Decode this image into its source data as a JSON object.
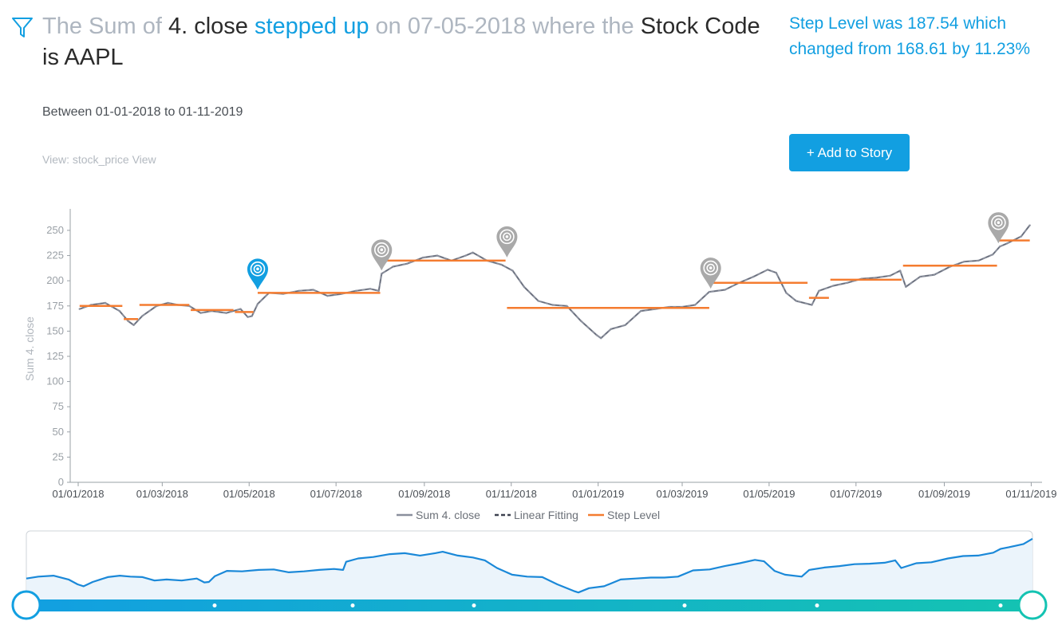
{
  "headline": {
    "p1": "The Sum of ",
    "measure": "4. close",
    "p2": " ",
    "trend": "stepped up",
    "p3": " on 07-05-2018 where the ",
    "dim": "Stock Code is AAPL"
  },
  "side_text": "Step Level was 187.54 which changed from 168.61 by 11.23%",
  "range_text": "Between 01-01-2018 to 01-11-2019",
  "view_text": "View: stock_price View",
  "add_button": "+ Add to Story",
  "icons": {
    "filter": "filter-icon",
    "marker": "map-pin-icon"
  },
  "colors": {
    "accent": "#129fe1",
    "series": "#8a8f9c",
    "step": "#f47c30",
    "marker_active": "#129fe1",
    "marker_inactive": "#a9a9a9"
  },
  "chart_data": {
    "type": "line",
    "xlabel": "",
    "ylabel": "Sum 4. close",
    "ylim": [
      0,
      265
    ],
    "yticks": [
      0,
      25,
      50,
      75,
      100,
      125,
      150,
      175,
      200,
      225,
      250
    ],
    "xrange": [
      "2018-01-01",
      "2019-11-03"
    ],
    "xticks": [
      {
        "date": "2018-01-01",
        "label": "01/01/2018"
      },
      {
        "date": "2018-03-01",
        "label": "01/03/2018"
      },
      {
        "date": "2018-05-01",
        "label": "01/05/2018"
      },
      {
        "date": "2018-07-01",
        "label": "01/07/2018"
      },
      {
        "date": "2018-09-01",
        "label": "01/09/2018"
      },
      {
        "date": "2018-11-01",
        "label": "01/11/2018"
      },
      {
        "date": "2019-01-01",
        "label": "01/01/2019"
      },
      {
        "date": "2019-03-01",
        "label": "01/03/2019"
      },
      {
        "date": "2019-05-01",
        "label": "01/05/2019"
      },
      {
        "date": "2019-07-01",
        "label": "01/07/2019"
      },
      {
        "date": "2019-09-01",
        "label": "01/09/2019"
      },
      {
        "date": "2019-11-01",
        "label": "01/11/2019"
      }
    ],
    "legend": [
      "Sum 4. close",
      "Linear Fitting",
      "Step Level"
    ],
    "legend_position": "bottom",
    "series": [
      {
        "name": "Sum 4. close",
        "x": [
          "2018-01-02",
          "2018-01-10",
          "2018-01-20",
          "2018-01-30",
          "2018-02-05",
          "2018-02-09",
          "2018-02-15",
          "2018-02-25",
          "2018-03-05",
          "2018-03-12",
          "2018-03-20",
          "2018-03-28",
          "2018-04-05",
          "2018-04-15",
          "2018-04-25",
          "2018-04-30",
          "2018-05-03",
          "2018-05-07",
          "2018-05-15",
          "2018-05-25",
          "2018-06-05",
          "2018-06-15",
          "2018-06-25",
          "2018-07-05",
          "2018-07-15",
          "2018-07-25",
          "2018-07-31",
          "2018-08-02",
          "2018-08-10",
          "2018-08-20",
          "2018-08-31",
          "2018-09-10",
          "2018-09-20",
          "2018-09-30",
          "2018-10-05",
          "2018-10-15",
          "2018-10-25",
          "2018-11-02",
          "2018-11-10",
          "2018-11-20",
          "2018-11-30",
          "2018-12-10",
          "2018-12-20",
          "2018-12-31",
          "2019-01-03",
          "2019-01-10",
          "2019-01-20",
          "2019-01-31",
          "2019-02-10",
          "2019-02-20",
          "2019-03-01",
          "2019-03-10",
          "2019-03-20",
          "2019-03-31",
          "2019-04-10",
          "2019-04-20",
          "2019-04-30",
          "2019-05-06",
          "2019-05-13",
          "2019-05-20",
          "2019-05-31",
          "2019-06-05",
          "2019-06-15",
          "2019-06-25",
          "2019-07-05",
          "2019-07-15",
          "2019-07-25",
          "2019-08-01",
          "2019-08-05",
          "2019-08-15",
          "2019-08-25",
          "2019-09-05",
          "2019-09-15",
          "2019-09-25",
          "2019-10-05",
          "2019-10-10",
          "2019-10-15",
          "2019-10-25",
          "2019-10-31"
        ],
        "values": [
          172,
          176,
          178,
          170,
          160,
          156,
          165,
          175,
          178,
          176,
          175,
          168,
          170,
          168,
          172,
          164,
          165,
          177,
          188,
          187,
          190,
          191,
          185,
          187,
          190,
          192,
          190,
          207,
          214,
          217,
          223,
          225,
          220,
          225,
          228,
          220,
          216,
          210,
          194,
          180,
          176,
          175,
          160,
          146,
          143,
          152,
          156,
          170,
          172,
          174,
          174,
          176,
          189,
          191,
          198,
          204,
          211,
          208,
          188,
          180,
          176,
          190,
          195,
          198,
          202,
          203,
          205,
          210,
          194,
          204,
          206,
          214,
          219,
          220,
          226,
          234,
          237,
          244,
          255
        ]
      },
      {
        "name": "Step Level",
        "steps": [
          {
            "from": "2018-01-02",
            "to": "2018-02-01",
            "y": 175
          },
          {
            "from": "2018-02-02",
            "to": "2018-02-12",
            "y": 162
          },
          {
            "from": "2018-02-13",
            "to": "2018-03-20",
            "y": 176
          },
          {
            "from": "2018-03-21",
            "to": "2018-04-20",
            "y": 171
          },
          {
            "from": "2018-04-21",
            "to": "2018-05-04",
            "y": 169
          },
          {
            "from": "2018-05-07",
            "to": "2018-08-01",
            "y": 188
          },
          {
            "from": "2018-08-02",
            "to": "2018-10-28",
            "y": 220
          },
          {
            "from": "2018-10-29",
            "to": "2019-03-20",
            "y": 173
          },
          {
            "from": "2019-03-21",
            "to": "2019-05-28",
            "y": 198
          },
          {
            "from": "2019-05-29",
            "to": "2019-06-12",
            "y": 183
          },
          {
            "from": "2019-06-13",
            "to": "2019-08-02",
            "y": 201
          },
          {
            "from": "2019-08-03",
            "to": "2019-10-08",
            "y": 215
          },
          {
            "from": "2019-10-09",
            "to": "2019-10-31",
            "y": 240
          }
        ]
      }
    ],
    "markers": [
      {
        "date": "2018-05-07",
        "y": 188,
        "active": true
      },
      {
        "date": "2018-08-02",
        "y": 207,
        "active": false
      },
      {
        "date": "2018-10-29",
        "y": 220,
        "active": false
      },
      {
        "date": "2019-03-21",
        "y": 189,
        "active": false
      },
      {
        "date": "2019-10-09",
        "y": 234,
        "active": false
      }
    ]
  }
}
